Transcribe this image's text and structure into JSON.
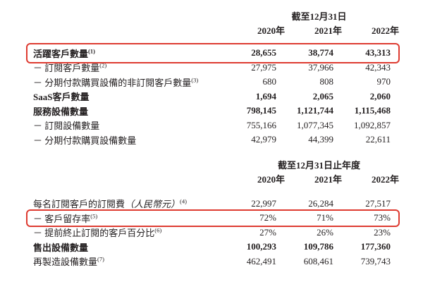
{
  "colors": {
    "text": "#231f20",
    "highlight_border": "#de3b31",
    "background": "#ffffff"
  },
  "table1": {
    "period_header": "截至12月31日",
    "years": [
      "2020年",
      "2021年",
      "2022年"
    ],
    "rows": [
      {
        "label": "活躍客戶數量",
        "sup": "(1)",
        "values": [
          "28,655",
          "38,774",
          "43,313"
        ],
        "bold": true,
        "highlight": true,
        "tall": true
      },
      {
        "label": "－ 訂閱客戶數量",
        "sup": "(2)",
        "values": [
          "27,975",
          "37,966",
          "42,343"
        ]
      },
      {
        "label": "－ 分期付款購買設備的非訂閱客戶數量",
        "sup": "(3)",
        "values": [
          "680",
          "808",
          "970"
        ]
      },
      {
        "label": "SaaS客戶數量",
        "values": [
          "1,694",
          "2,065",
          "2,060"
        ],
        "bold": true
      },
      {
        "label": "服務設備數量",
        "values": [
          "798,145",
          "1,121,744",
          "1,115,468"
        ],
        "bold": true
      },
      {
        "label": "－ 訂閱設備數量",
        "values": [
          "755,166",
          "1,077,345",
          "1,092,857"
        ]
      },
      {
        "label": "－ 分期付款購買設備數量",
        "values": [
          "42,979",
          "44,399",
          "22,611"
        ]
      }
    ]
  },
  "table2": {
    "period_header": "截至12月31日止年度",
    "years": [
      "2020年",
      "2021年",
      "2022年"
    ],
    "rows": [
      {
        "label": "每名訂閱客戶的訂閱費",
        "italic": "（人民幣元）",
        "sup": "(4)",
        "values": [
          "22,997",
          "26,284",
          "27,517"
        ]
      },
      {
        "label": "－ 客戶留存率",
        "sup": "(5)",
        "values": [
          "72%",
          "71%",
          "73%"
        ],
        "highlight": true
      },
      {
        "label": "－ 提前終止訂閱的客戶百分比",
        "sup": "(6)",
        "values": [
          "27%",
          "26%",
          "23%"
        ]
      },
      {
        "label": "售出設備數量",
        "values": [
          "100,293",
          "109,786",
          "177,360"
        ],
        "bold": true
      },
      {
        "label": "再製造設備數量",
        "sup": "(7)",
        "values": [
          "462,491",
          "608,461",
          "739,743"
        ]
      }
    ]
  }
}
